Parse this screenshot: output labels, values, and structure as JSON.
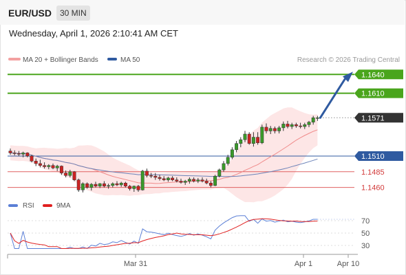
{
  "header": {
    "symbol": "EUR/USD",
    "timeframe": "30 MIN"
  },
  "datetime": "Wednesday, April 1, 2026 2:10:41 AM CET",
  "legend": [
    {
      "label": "MA 20 + Bollinger Bands",
      "color": "#f3a1a1"
    },
    {
      "label": "MA 50",
      "color": "#2f5aa0"
    }
  ],
  "credit": "Research © 2026 Trading Central",
  "rsi_legend": [
    {
      "label": "RSI",
      "color": "#5b7fd6"
    },
    {
      "label": "9MA",
      "color": "#e02020"
    }
  ],
  "colors": {
    "green": "#4aa51c",
    "red": "#e06060",
    "blue": "#2f5aa0",
    "dark": "#333333",
    "band": "#fde2e2"
  },
  "chart_data": {
    "type": "candlestick",
    "x_tick_labels": [
      "Mar 31",
      "Apr 1",
      "Apr 10"
    ],
    "ylim": [
      1.143,
      1.166
    ],
    "levels": [
      {
        "value": 1.164,
        "label": "1.1640",
        "style": "green"
      },
      {
        "value": 1.161,
        "label": "1.1610",
        "style": "green"
      },
      {
        "value": 1.1571,
        "label": "1.1571",
        "style": "dark"
      },
      {
        "value": 1.151,
        "label": "1.1510",
        "style": "blue"
      },
      {
        "value": 1.1485,
        "label": "1.1485",
        "style": "red"
      },
      {
        "value": 1.146,
        "label": "1.1460",
        "style": "red"
      }
    ],
    "candles": [
      [
        1.1518,
        1.1522,
        1.1512,
        1.1515
      ],
      [
        1.1515,
        1.1519,
        1.1511,
        1.1514
      ],
      [
        1.1514,
        1.1518,
        1.151,
        1.1513
      ],
      [
        1.1513,
        1.1517,
        1.1508,
        1.1515
      ],
      [
        1.1515,
        1.1516,
        1.1508,
        1.151
      ],
      [
        1.151,
        1.1512,
        1.15,
        1.1502
      ],
      [
        1.1502,
        1.1506,
        1.1494,
        1.1498
      ],
      [
        1.1498,
        1.1504,
        1.1492,
        1.1495
      ],
      [
        1.1495,
        1.15,
        1.149,
        1.1493
      ],
      [
        1.1493,
        1.1497,
        1.1489,
        1.1495
      ],
      [
        1.1495,
        1.1498,
        1.1489,
        1.1491
      ],
      [
        1.1491,
        1.1496,
        1.1486,
        1.1494
      ],
      [
        1.1494,
        1.1495,
        1.148,
        1.1483
      ],
      [
        1.1483,
        1.1487,
        1.1476,
        1.1479
      ],
      [
        1.1479,
        1.1488,
        1.1476,
        1.1485
      ],
      [
        1.1485,
        1.1486,
        1.147,
        1.1472
      ],
      [
        1.1472,
        1.1474,
        1.1453,
        1.1456
      ],
      [
        1.1456,
        1.1468,
        1.1452,
        1.1466
      ],
      [
        1.1466,
        1.1468,
        1.1458,
        1.146
      ],
      [
        1.146,
        1.1467,
        1.1455,
        1.1465
      ],
      [
        1.1465,
        1.1469,
        1.146,
        1.1462
      ],
      [
        1.1462,
        1.1467,
        1.1459,
        1.1466
      ],
      [
        1.1466,
        1.147,
        1.146,
        1.1462
      ],
      [
        1.1462,
        1.1466,
        1.1458,
        1.1463
      ],
      [
        1.1463,
        1.1468,
        1.146,
        1.1466
      ],
      [
        1.1466,
        1.147,
        1.1462,
        1.1464
      ],
      [
        1.1464,
        1.1469,
        1.1461,
        1.1467
      ],
      [
        1.1467,
        1.1469,
        1.146,
        1.1462
      ],
      [
        1.1462,
        1.1464,
        1.1455,
        1.1458
      ],
      [
        1.1458,
        1.1463,
        1.1453,
        1.1462
      ],
      [
        1.1462,
        1.1464,
        1.1453,
        1.1456
      ],
      [
        1.1456,
        1.1488,
        1.1455,
        1.1486
      ],
      [
        1.1486,
        1.149,
        1.1476,
        1.1479
      ],
      [
        1.1479,
        1.1483,
        1.1475,
        1.1478
      ],
      [
        1.1478,
        1.1483,
        1.1472,
        1.1476
      ],
      [
        1.1476,
        1.148,
        1.1471,
        1.1474
      ],
      [
        1.1474,
        1.1478,
        1.147,
        1.1472
      ],
      [
        1.1472,
        1.1477,
        1.1469,
        1.1475
      ],
      [
        1.1475,
        1.1478,
        1.147,
        1.1472
      ],
      [
        1.1472,
        1.1476,
        1.1468,
        1.147
      ],
      [
        1.147,
        1.1474,
        1.1466,
        1.1468
      ],
      [
        1.1468,
        1.1472,
        1.1464,
        1.147
      ],
      [
        1.147,
        1.1476,
        1.1466,
        1.1473
      ],
      [
        1.1473,
        1.1476,
        1.1468,
        1.147
      ],
      [
        1.147,
        1.1475,
        1.1467,
        1.1472
      ],
      [
        1.1472,
        1.1476,
        1.1468,
        1.147
      ],
      [
        1.147,
        1.1474,
        1.1465,
        1.1467
      ],
      [
        1.1467,
        1.147,
        1.146,
        1.1463
      ],
      [
        1.1463,
        1.148,
        1.1462,
        1.1478
      ],
      [
        1.1478,
        1.149,
        1.1476,
        1.1488
      ],
      [
        1.1488,
        1.1502,
        1.1485,
        1.1498
      ],
      [
        1.1498,
        1.1512,
        1.1495,
        1.1508
      ],
      [
        1.1508,
        1.1524,
        1.1505,
        1.152
      ],
      [
        1.152,
        1.1534,
        1.1516,
        1.153
      ],
      [
        1.153,
        1.154,
        1.1524,
        1.1536
      ],
      [
        1.1536,
        1.155,
        1.1532,
        1.1545
      ],
      [
        1.1545,
        1.1548,
        1.1528,
        1.153
      ],
      [
        1.153,
        1.1548,
        1.1525,
        1.154
      ],
      [
        1.154,
        1.1548,
        1.1528,
        1.1531
      ],
      [
        1.1531,
        1.156,
        1.1529,
        1.1556
      ],
      [
        1.1556,
        1.1562,
        1.1546,
        1.155
      ],
      [
        1.155,
        1.1558,
        1.1545,
        1.1554
      ],
      [
        1.1554,
        1.1557,
        1.1546,
        1.155
      ],
      [
        1.155,
        1.1558,
        1.1546,
        1.1555
      ],
      [
        1.1555,
        1.1565,
        1.155,
        1.1561
      ],
      [
        1.1561,
        1.1566,
        1.1554,
        1.1557
      ],
      [
        1.1557,
        1.1563,
        1.1553,
        1.156
      ],
      [
        1.156,
        1.1563,
        1.1555,
        1.1558
      ],
      [
        1.1558,
        1.1563,
        1.1554,
        1.1557
      ],
      [
        1.1557,
        1.1563,
        1.1553,
        1.156
      ],
      [
        1.156,
        1.1566,
        1.1556,
        1.1564
      ],
      [
        1.1564,
        1.1574,
        1.156,
        1.1571
      ],
      [
        1.1571,
        1.1574,
        1.1566,
        1.1571
      ]
    ],
    "rsi_ticks": [
      "70",
      "50",
      "30"
    ],
    "rsi_ylim": [
      20,
      80
    ]
  }
}
